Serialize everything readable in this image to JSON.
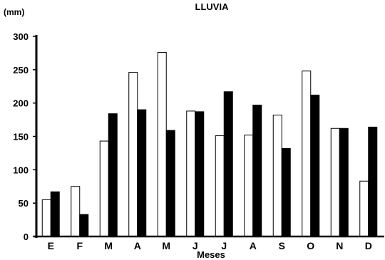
{
  "chart_data": {
    "type": "bar",
    "title": "LLUVIA",
    "ylabel": "(mm)",
    "xlabel": "Meses",
    "categories": [
      "E",
      "F",
      "M",
      "A",
      "M",
      "J",
      "J",
      "A",
      "S",
      "O",
      "N",
      "D"
    ],
    "series": [
      {
        "fill": "#ffffff",
        "values": [
          55,
          75,
          143,
          246,
          276,
          188,
          151,
          152,
          182,
          248,
          162,
          83
        ]
      },
      {
        "fill": "#000000",
        "values": [
          67,
          33,
          184,
          190,
          159,
          187,
          217,
          197,
          132,
          212,
          162,
          164
        ]
      }
    ],
    "ylim": [
      0,
      300
    ],
    "yticks": [
      0,
      50,
      100,
      150,
      200,
      250,
      300
    ],
    "grid": false,
    "legend": "none"
  }
}
